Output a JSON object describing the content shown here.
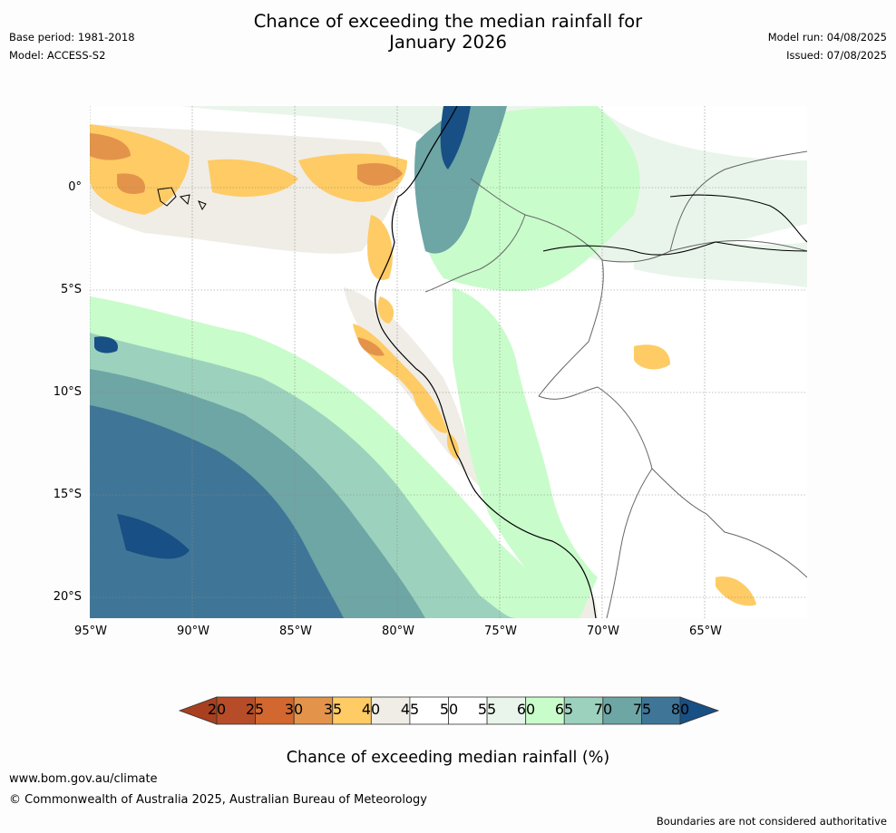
{
  "title": {
    "line1": "Chance of exceeding the median rainfall for",
    "line2": "January 2026"
  },
  "meta": {
    "base_period": "Base period: 1981-2018",
    "model": "Model: ACCESS-S2",
    "model_run": "Model run: 04/08/2025",
    "issued": "Issued: 07/08/2025"
  },
  "map": {
    "lat_labels": [
      "0°",
      "5°S",
      "10°S",
      "15°S",
      "20°S"
    ],
    "lon_labels": [
      "95°W",
      "90°W",
      "85°W",
      "80°W",
      "75°W",
      "70°W",
      "65°W"
    ]
  },
  "legend": {
    "ticks": [
      "20",
      "25",
      "30",
      "35",
      "40",
      "45",
      "50",
      "55",
      "60",
      "65",
      "70",
      "75",
      "80"
    ],
    "colors": [
      "#a8401f",
      "#b64d28",
      "#d2672f",
      "#e3944a",
      "#fecb65",
      "#f0ede6",
      "#ffffff",
      "#ffffff",
      "#e9f5ea",
      "#c9fccb",
      "#9cd2bd",
      "#6ea5a5",
      "#3f7697",
      "#184f84"
    ],
    "label": "Chance of exceeding median rainfall (%)"
  },
  "footer": {
    "website": "www.bom.gov.au/climate",
    "copyright": "© Commonwealth of Australia 2025, Australian Bureau of Meteorology",
    "disclaimer": "Boundaries are not considered authoritative"
  }
}
